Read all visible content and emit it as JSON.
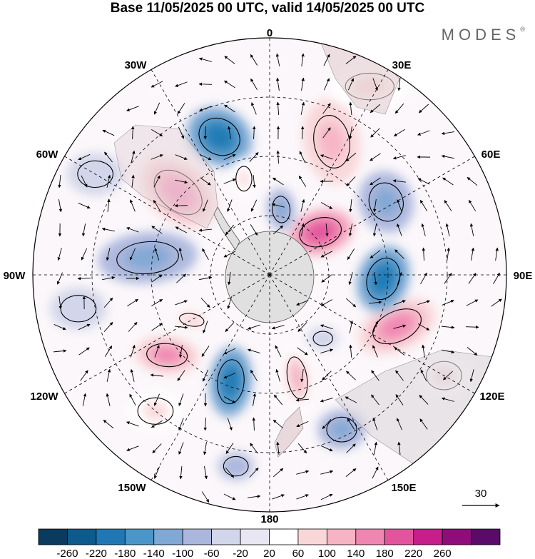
{
  "title": "Base 11/05/2025 00 UTC, valid 14/05/2025 00 UTC",
  "brand": "MODES",
  "brand_mark": "®",
  "projection": "south-polar-stereographic",
  "longitude_labels": {
    "top": "0",
    "top_right": "30E",
    "right_upper": "60E",
    "right": "90E",
    "right_lower": "120E",
    "bottom_right": "150E",
    "bottom": "180",
    "bottom_left": "150W",
    "left_lower": "120W",
    "left": "90W",
    "left_upper": "60W",
    "top_left": "30W"
  },
  "vector_reference": {
    "label": "30",
    "icon": "arrow-right-icon"
  },
  "colorbar": {
    "labels": [
      "-260",
      "-220",
      "-180",
      "-140",
      "-100",
      "-60",
      "-20",
      "20",
      "60",
      "100",
      "140",
      "180",
      "220",
      "260"
    ],
    "colors": [
      "#0a3a5e",
      "#0d5a8c",
      "#1f78b4",
      "#4a96c8",
      "#7fa8d4",
      "#aab6dc",
      "#d2d6ea",
      "#e8e6f2",
      "#ffffff",
      "#f9d6d8",
      "#f5b3c4",
      "#ef86b2",
      "#e2559d",
      "#c61e8a",
      "#8e0d7a",
      "#5a0a68"
    ]
  },
  "anomalies": [
    {
      "lon": -20,
      "r": 0.62,
      "rx": 48,
      "ry": 40,
      "rot": 30,
      "value": -200
    },
    {
      "lon": -48,
      "r": 0.52,
      "rx": 62,
      "ry": 40,
      "rot": 40,
      "value": 170
    },
    {
      "lon": -82,
      "r": 0.52,
      "rx": 70,
      "ry": 36,
      "rot": -5,
      "value": -120
    },
    {
      "lon": -128,
      "r": 0.55,
      "rx": 46,
      "ry": 26,
      "rot": 5,
      "value": 150
    },
    {
      "lon": -120,
      "r": 0.38,
      "rx": 28,
      "ry": 14,
      "rot": 10,
      "value": 80
    },
    {
      "lon": -160,
      "r": 0.48,
      "rx": 30,
      "ry": 50,
      "rot": 5,
      "value": -200
    },
    {
      "lon": 165,
      "r": 0.45,
      "rx": 22,
      "ry": 48,
      "rot": -10,
      "value": 100
    },
    {
      "lon": 155,
      "r": 0.72,
      "rx": 34,
      "ry": 28,
      "rot": 0,
      "value": -120
    },
    {
      "lon": -170,
      "r": 0.82,
      "rx": 28,
      "ry": 22,
      "rot": 0,
      "value": -80
    },
    {
      "lon": 112,
      "r": 0.58,
      "rx": 58,
      "ry": 34,
      "rot": -25,
      "value": 140
    },
    {
      "lon": 92,
      "r": 0.48,
      "rx": 36,
      "ry": 48,
      "rot": 20,
      "value": -200
    },
    {
      "lon": 58,
      "r": 0.58,
      "rx": 38,
      "ry": 44,
      "rot": -20,
      "value": -120
    },
    {
      "lon": 50,
      "r": 0.28,
      "rx": 48,
      "ry": 32,
      "rot": -15,
      "value": 190
    },
    {
      "lon": 25,
      "r": 0.62,
      "rx": 40,
      "ry": 60,
      "rot": -10,
      "value": 120
    },
    {
      "lon": 10,
      "r": 0.28,
      "rx": 20,
      "ry": 30,
      "rot": -5,
      "value": -110
    },
    {
      "lon": 28,
      "r": 0.9,
      "rx": 55,
      "ry": 30,
      "rot": 0,
      "value": 60
    },
    {
      "lon": -15,
      "r": 0.42,
      "rx": 18,
      "ry": 28,
      "rot": 0,
      "value": 60
    },
    {
      "lon": 140,
      "r": 0.35,
      "rx": 22,
      "ry": 16,
      "rot": 0,
      "value": -60
    },
    {
      "lon": -100,
      "r": 0.82,
      "rx": 40,
      "ry": 30,
      "rot": 0,
      "value": -60
    },
    {
      "lon": 120,
      "r": 0.85,
      "rx": 40,
      "ry": 32,
      "rot": 0,
      "value": 60
    },
    {
      "lon": -60,
      "r": 0.85,
      "rx": 40,
      "ry": 30,
      "rot": 0,
      "value": -60
    },
    {
      "lon": -140,
      "r": 0.75,
      "rx": 40,
      "ry": 30,
      "rot": 0,
      "value": 60
    }
  ]
}
